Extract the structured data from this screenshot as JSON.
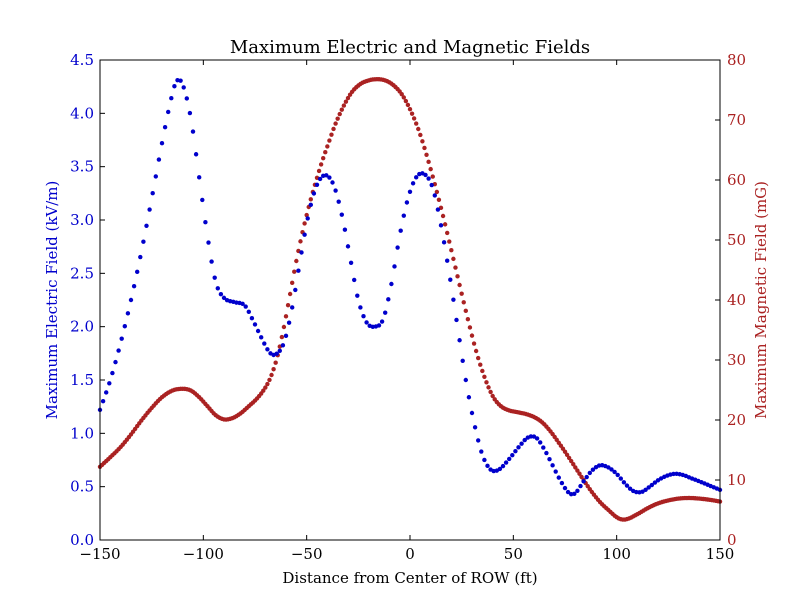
{
  "chart_data": {
    "type": "scatter",
    "title": "Maximum Electric and Magnetic Fields",
    "xlabel": "Distance from Center of ROW (ft)",
    "ylabel_left": "Maximum Electric Field (kV/m)",
    "ylabel_right": "Maximum Magnetic Field (mG)",
    "xlim": [
      -150,
      150
    ],
    "ylim_left": [
      0,
      4.5
    ],
    "ylim_right": [
      0,
      80
    ],
    "xticks": [
      -150,
      -100,
      -50,
      0,
      50,
      100,
      150
    ],
    "xtick_labels": [
      "−150",
      "−100",
      "−50",
      "0",
      "50",
      "100",
      "150"
    ],
    "yticks_left": [
      0.0,
      0.5,
      1.0,
      1.5,
      2.0,
      2.5,
      3.0,
      3.5,
      4.0,
      4.5
    ],
    "ytick_labels_left": [
      "0.0",
      "0.5",
      "1.0",
      "1.5",
      "2.0",
      "2.5",
      "3.0",
      "3.5",
      "4.0",
      "4.5"
    ],
    "yticks_right": [
      0,
      10,
      20,
      30,
      40,
      50,
      60,
      70,
      80
    ],
    "ytick_labels_right": [
      "0",
      "10",
      "20",
      "30",
      "40",
      "50",
      "60",
      "70",
      "80"
    ],
    "colors": {
      "electric": "#0000cc",
      "magnetic": "#aa2222",
      "left_axis_text": "#0000cc",
      "right_axis_text": "#aa2222",
      "frame": "#000000"
    },
    "series": [
      {
        "name": "Maximum Electric Field",
        "axis": "left",
        "step": 1.5,
        "anchors": [
          [
            -150,
            1.22
          ],
          [
            -145,
            1.5
          ],
          [
            -140,
            1.85
          ],
          [
            -135,
            2.25
          ],
          [
            -130,
            2.7
          ],
          [
            -125,
            3.2
          ],
          [
            -120,
            3.72
          ],
          [
            -116,
            4.1
          ],
          [
            -113,
            4.3
          ],
          [
            -110,
            4.27
          ],
          [
            -106,
            3.95
          ],
          [
            -102,
            3.4
          ],
          [
            -98,
            2.85
          ],
          [
            -94,
            2.42
          ],
          [
            -90,
            2.27
          ],
          [
            -85,
            2.23
          ],
          [
            -80,
            2.2
          ],
          [
            -76,
            2.06
          ],
          [
            -72,
            1.9
          ],
          [
            -68,
            1.76
          ],
          [
            -65,
            1.74
          ],
          [
            -61,
            1.85
          ],
          [
            -57,
            2.18
          ],
          [
            -53,
            2.64
          ],
          [
            -49,
            3.06
          ],
          [
            -45,
            3.33
          ],
          [
            -41,
            3.42
          ],
          [
            -37,
            3.33
          ],
          [
            -33,
            3.05
          ],
          [
            -29,
            2.65
          ],
          [
            -25,
            2.25
          ],
          [
            -21,
            2.04
          ],
          [
            -17,
            2.0
          ],
          [
            -13,
            2.07
          ],
          [
            -9,
            2.4
          ],
          [
            -5,
            2.85
          ],
          [
            -1,
            3.2
          ],
          [
            3,
            3.4
          ],
          [
            7,
            3.43
          ],
          [
            11,
            3.3
          ],
          [
            15,
            2.95
          ],
          [
            19,
            2.5
          ],
          [
            23,
            2.0
          ],
          [
            27,
            1.5
          ],
          [
            31,
            1.1
          ],
          [
            35,
            0.8
          ],
          [
            39,
            0.66
          ],
          [
            43,
            0.66
          ],
          [
            48,
            0.76
          ],
          [
            53,
            0.88
          ],
          [
            57,
            0.96
          ],
          [
            61,
            0.96
          ],
          [
            65,
            0.85
          ],
          [
            69,
            0.7
          ],
          [
            73,
            0.55
          ],
          [
            77,
            0.44
          ],
          [
            80,
            0.44
          ],
          [
            84,
            0.55
          ],
          [
            88,
            0.65
          ],
          [
            92,
            0.7
          ],
          [
            96,
            0.68
          ],
          [
            100,
            0.62
          ],
          [
            104,
            0.53
          ],
          [
            108,
            0.46
          ],
          [
            112,
            0.45
          ],
          [
            116,
            0.5
          ],
          [
            120,
            0.56
          ],
          [
            124,
            0.6
          ],
          [
            128,
            0.62
          ],
          [
            132,
            0.61
          ],
          [
            136,
            0.58
          ],
          [
            140,
            0.55
          ],
          [
            145,
            0.51
          ],
          [
            150,
            0.47
          ]
        ]
      },
      {
        "name": "Maximum Magnetic Field",
        "axis": "right",
        "step": 1.0,
        "anchors": [
          [
            -150,
            12.2
          ],
          [
            -145,
            13.8
          ],
          [
            -140,
            15.5
          ],
          [
            -135,
            17.6
          ],
          [
            -130,
            19.9
          ],
          [
            -125,
            22.0
          ],
          [
            -120,
            23.8
          ],
          [
            -115,
            24.9
          ],
          [
            -110,
            25.2
          ],
          [
            -106,
            24.9
          ],
          [
            -102,
            23.8
          ],
          [
            -98,
            22.3
          ],
          [
            -94,
            20.8
          ],
          [
            -90,
            20.1
          ],
          [
            -86,
            20.3
          ],
          [
            -82,
            21.1
          ],
          [
            -78,
            22.3
          ],
          [
            -74,
            23.6
          ],
          [
            -70,
            25.4
          ],
          [
            -67,
            27.5
          ],
          [
            -64,
            30.8
          ],
          [
            -61,
            35.5
          ],
          [
            -58,
            41.0
          ],
          [
            -55,
            46.5
          ],
          [
            -52,
            51.3
          ],
          [
            -49,
            55.5
          ],
          [
            -46,
            59.2
          ],
          [
            -43,
            62.6
          ],
          [
            -40,
            65.6
          ],
          [
            -36,
            69.4
          ],
          [
            -32,
            72.4
          ],
          [
            -28,
            74.7
          ],
          [
            -24,
            76.0
          ],
          [
            -20,
            76.6
          ],
          [
            -16,
            76.8
          ],
          [
            -12,
            76.6
          ],
          [
            -8,
            75.8
          ],
          [
            -4,
            74.3
          ],
          [
            0,
            71.8
          ],
          [
            4,
            68.5
          ],
          [
            8,
            64.2
          ],
          [
            12,
            59.3
          ],
          [
            16,
            54.0
          ],
          [
            20,
            48.3
          ],
          [
            24,
            42.5
          ],
          [
            28,
            36.8
          ],
          [
            32,
            31.5
          ],
          [
            36,
            27.2
          ],
          [
            40,
            24.0
          ],
          [
            44,
            22.3
          ],
          [
            48,
            21.6
          ],
          [
            52,
            21.3
          ],
          [
            56,
            21.0
          ],
          [
            60,
            20.5
          ],
          [
            64,
            19.6
          ],
          [
            68,
            18.1
          ],
          [
            72,
            16.2
          ],
          [
            76,
            14.2
          ],
          [
            80,
            12.1
          ],
          [
            84,
            10.0
          ],
          [
            88,
            8.0
          ],
          [
            92,
            6.3
          ],
          [
            96,
            5.0
          ],
          [
            100,
            3.8
          ],
          [
            103,
            3.4
          ],
          [
            106,
            3.6
          ],
          [
            110,
            4.3
          ],
          [
            115,
            5.3
          ],
          [
            120,
            6.1
          ],
          [
            125,
            6.6
          ],
          [
            130,
            6.9
          ],
          [
            135,
            7.0
          ],
          [
            140,
            6.9
          ],
          [
            145,
            6.7
          ],
          [
            150,
            6.4
          ]
        ]
      }
    ]
  }
}
